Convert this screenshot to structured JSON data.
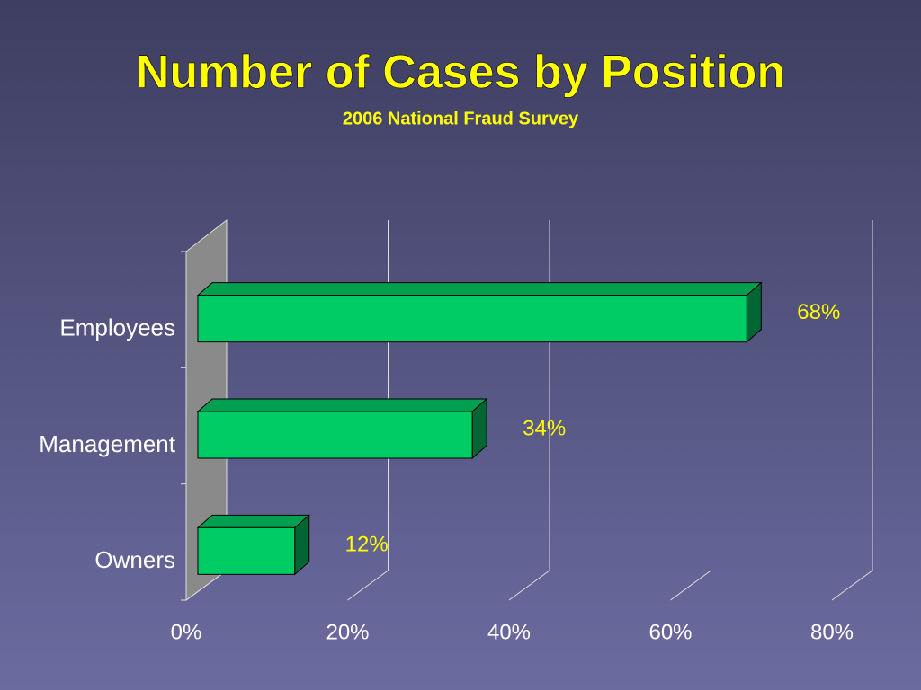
{
  "chart_data": {
    "type": "bar",
    "orientation": "horizontal",
    "title": "Number of Cases by Position",
    "subtitle": "2006 National Fraud Survey",
    "categories": [
      "Employees",
      "Management",
      "Owners"
    ],
    "values": [
      68,
      34,
      12
    ],
    "value_labels": [
      "68%",
      "34%",
      "12%"
    ],
    "color": "#00cc66",
    "xlim": [
      0,
      80
    ],
    "xticks": [
      {
        "value": 0,
        "label": "0%"
      },
      {
        "value": 20,
        "label": "20%"
      },
      {
        "value": 40,
        "label": "40%"
      },
      {
        "value": 60,
        "label": "60%"
      },
      {
        "value": 80,
        "label": "80%"
      }
    ],
    "grid": true
  }
}
